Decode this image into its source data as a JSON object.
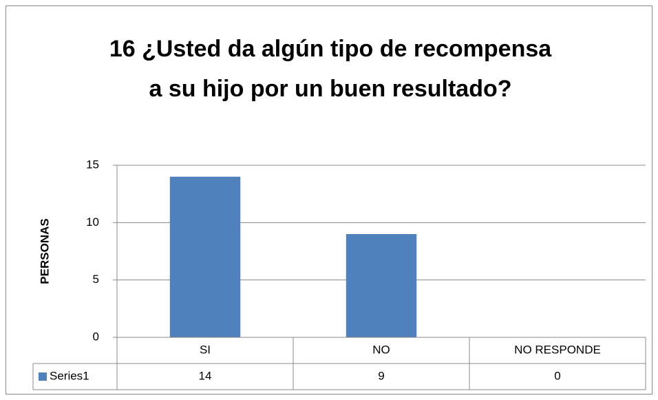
{
  "chart_data": {
    "type": "bar",
    "title": "16 ¿Usted da algún tipo de recompensa a su hijo por un buen resultado?",
    "y_label": "PERSONAS",
    "categories": [
      "SI",
      "NO",
      "NO RESPONDE"
    ],
    "series": [
      {
        "name": "Series1",
        "color": "#4f81bd",
        "values": [
          14,
          9,
          0
        ]
      }
    ],
    "ylim": [
      0,
      15
    ],
    "yticks": [
      0,
      5,
      10,
      15
    ],
    "grid": true,
    "data_table": true
  }
}
